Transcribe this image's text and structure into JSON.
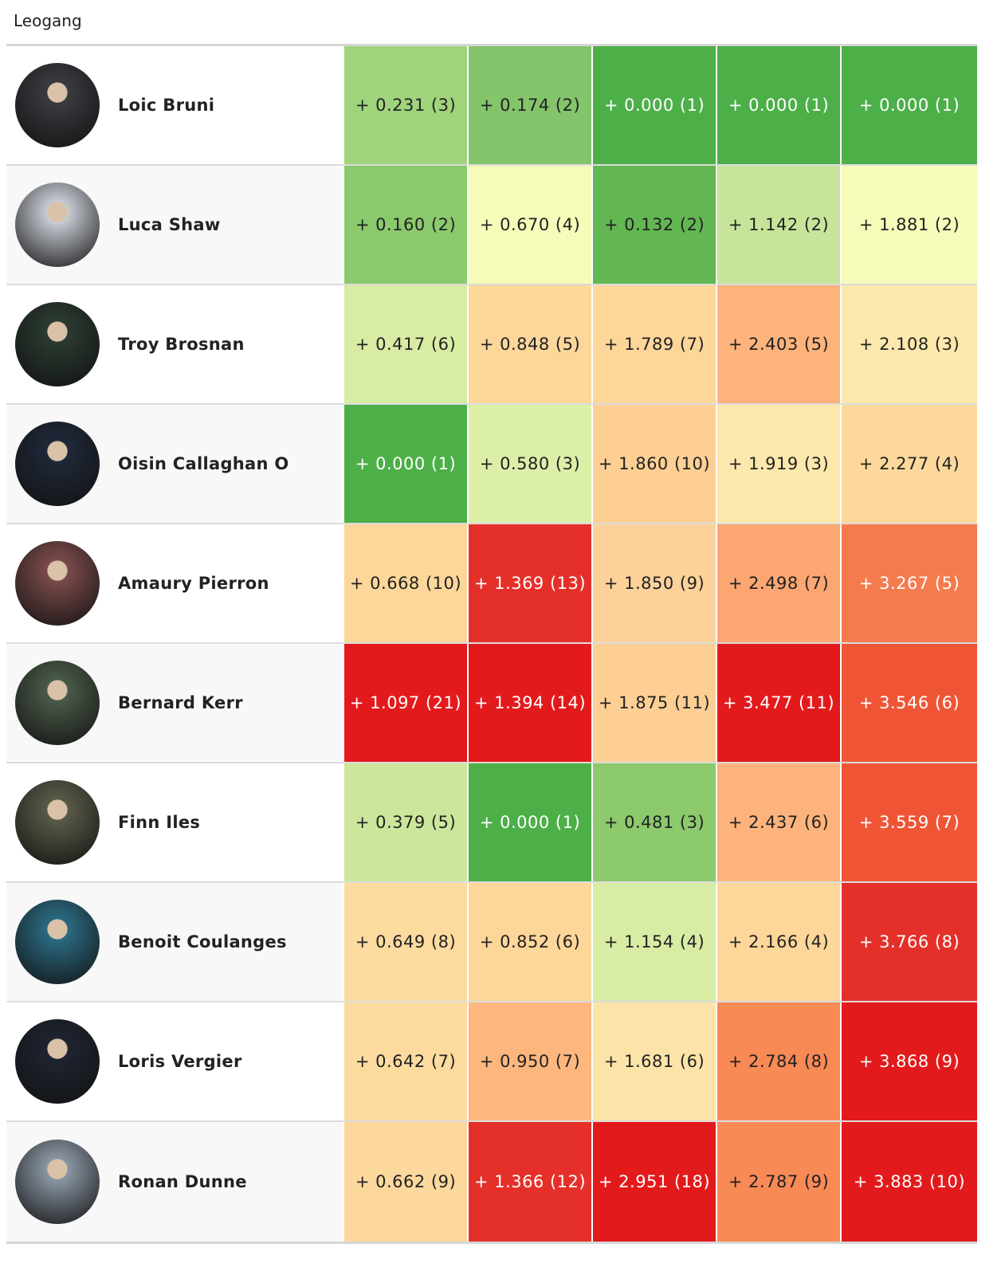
{
  "title": "Leogang",
  "rows": [
    {
      "name": "Loic Bruni",
      "avatar": "#3a3a40",
      "cells": [
        {
          "text": "+ 0.231 (3)",
          "bg": "#a0d47c",
          "fg": "#222"
        },
        {
          "text": "+ 0.174 (2)",
          "bg": "#84c46a",
          "fg": "#222"
        },
        {
          "text": "+ 0.000 (1)",
          "bg": "#4caf48",
          "fg": "#fff"
        },
        {
          "text": "+ 0.000 (1)",
          "bg": "#4caf48",
          "fg": "#fff"
        },
        {
          "text": "+ 0.000 (1)",
          "bg": "#4caf48",
          "fg": "#fff"
        }
      ]
    },
    {
      "name": "Luca Shaw",
      "avatar": "#c8ccd4",
      "cells": [
        {
          "text": "+ 0.160 (2)",
          "bg": "#8ac96c",
          "fg": "#222"
        },
        {
          "text": "+ 0.670 (4)",
          "bg": "#f6fbb9",
          "fg": "#222"
        },
        {
          "text": "+ 0.132 (2)",
          "bg": "#62b752",
          "fg": "#222"
        },
        {
          "text": "+ 1.142 (2)",
          "bg": "#c7e59a",
          "fg": "#222"
        },
        {
          "text": "+ 1.881 (2)",
          "bg": "#f6fbb9",
          "fg": "#222"
        }
      ]
    },
    {
      "name": "Troy Brosnan",
      "avatar": "#2a3a30",
      "cells": [
        {
          "text": "+ 0.417 (6)",
          "bg": "#d8eca4",
          "fg": "#222"
        },
        {
          "text": "+ 0.848 (5)",
          "bg": "#fdd69a",
          "fg": "#222"
        },
        {
          "text": "+ 1.789 (7)",
          "bg": "#fdd69a",
          "fg": "#222"
        },
        {
          "text": "+ 2.403 (5)",
          "bg": "#fdb37b",
          "fg": "#222"
        },
        {
          "text": "+ 2.108 (3)",
          "bg": "#fce8ac",
          "fg": "#222"
        }
      ]
    },
    {
      "name": "Oisin Callaghan O",
      "avatar": "#1f2838",
      "cells": [
        {
          "text": "+ 0.000 (1)",
          "bg": "#4caf48",
          "fg": "#fff"
        },
        {
          "text": "+ 0.580 (3)",
          "bg": "#dcefa8",
          "fg": "#222"
        },
        {
          "text": "+ 1.860 (10)",
          "bg": "#fdcf94",
          "fg": "#222"
        },
        {
          "text": "+ 1.919 (3)",
          "bg": "#fce8ac",
          "fg": "#222"
        },
        {
          "text": "+ 2.277 (4)",
          "bg": "#fdd89c",
          "fg": "#222"
        }
      ]
    },
    {
      "name": "Amaury Pierron",
      "avatar": "#7a4a4a",
      "cells": [
        {
          "text": "+ 0.668 (10)",
          "bg": "#fdd69a",
          "fg": "#222"
        },
        {
          "text": "+ 1.369 (13)",
          "bg": "#e5302a",
          "fg": "#fff"
        },
        {
          "text": "+ 1.850 (9)",
          "bg": "#fdd29a",
          "fg": "#222"
        },
        {
          "text": "+ 2.498 (7)",
          "bg": "#fca672",
          "fg": "#222"
        },
        {
          "text": "+ 3.267 (5)",
          "bg": "#f57a4d",
          "fg": "#fff"
        }
      ]
    },
    {
      "name": "Bernard Kerr",
      "avatar": "#4a5a48",
      "cells": [
        {
          "text": "+ 1.097 (21)",
          "bg": "#e31a1c",
          "fg": "#fff"
        },
        {
          "text": "+ 1.394 (14)",
          "bg": "#e31a1c",
          "fg": "#fff"
        },
        {
          "text": "+ 1.875 (11)",
          "bg": "#fdcf94",
          "fg": "#222"
        },
        {
          "text": "+ 3.477 (11)",
          "bg": "#e31a1c",
          "fg": "#fff"
        },
        {
          "text": "+ 3.546 (6)",
          "bg": "#ef5535",
          "fg": "#fff"
        }
      ]
    },
    {
      "name": "Finn Iles",
      "avatar": "#5a5a48",
      "cells": [
        {
          "text": "+ 0.379 (5)",
          "bg": "#cce79c",
          "fg": "#222"
        },
        {
          "text": "+ 0.000 (1)",
          "bg": "#4caf48",
          "fg": "#fff"
        },
        {
          "text": "+ 0.481 (3)",
          "bg": "#8dc96d",
          "fg": "#222"
        },
        {
          "text": "+ 2.437 (6)",
          "bg": "#fdb37b",
          "fg": "#222"
        },
        {
          "text": "+ 3.559 (7)",
          "bg": "#ef5535",
          "fg": "#fff"
        }
      ]
    },
    {
      "name": "Benoit Coulanges",
      "avatar": "#2a6a80",
      "cells": [
        {
          "text": "+ 0.649 (8)",
          "bg": "#fddb9f",
          "fg": "#222"
        },
        {
          "text": "+ 0.852 (6)",
          "bg": "#fdd69a",
          "fg": "#222"
        },
        {
          "text": "+ 1.154 (4)",
          "bg": "#d8eca4",
          "fg": "#222"
        },
        {
          "text": "+ 2.166 (4)",
          "bg": "#fdd69a",
          "fg": "#222"
        },
        {
          "text": "+ 3.766 (8)",
          "bg": "#e5302a",
          "fg": "#fff"
        }
      ]
    },
    {
      "name": "Loris Vergier",
      "avatar": "#1e2430",
      "cells": [
        {
          "text": "+ 0.642 (7)",
          "bg": "#fddb9f",
          "fg": "#222"
        },
        {
          "text": "+ 0.950 (7)",
          "bg": "#fdb77e",
          "fg": "#222"
        },
        {
          "text": "+ 1.681 (6)",
          "bg": "#fce4a8",
          "fg": "#222"
        },
        {
          "text": "+ 2.784 (8)",
          "bg": "#f88a56",
          "fg": "#222"
        },
        {
          "text": "+ 3.868 (9)",
          "bg": "#e31a1c",
          "fg": "#fff"
        }
      ]
    },
    {
      "name": "Ronan Dunne",
      "avatar": "#8a96a4",
      "cells": [
        {
          "text": "+ 0.662 (9)",
          "bg": "#fdd89c",
          "fg": "#222"
        },
        {
          "text": "+ 1.366 (12)",
          "bg": "#e5302a",
          "fg": "#fff"
        },
        {
          "text": "+ 2.951 (18)",
          "bg": "#e31a1c",
          "fg": "#fff"
        },
        {
          "text": "+ 2.787 (9)",
          "bg": "#f88a56",
          "fg": "#222"
        },
        {
          "text": "+ 3.883 (10)",
          "bg": "#e31a1c",
          "fg": "#fff"
        }
      ]
    }
  ]
}
